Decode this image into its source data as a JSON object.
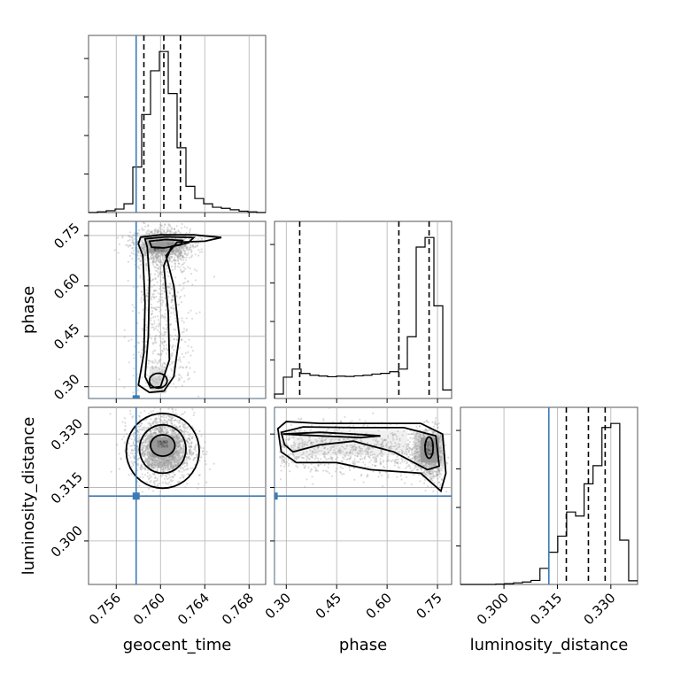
{
  "chart_data": {
    "type": "corner",
    "params": [
      "geocent_time",
      "phase",
      "luminosity_distance"
    ],
    "axis_labels": {
      "geocent_time": "geocent_time",
      "phase": "phase",
      "luminosity_distance": "luminosity_distance"
    },
    "ranges": {
      "geocent_time": [
        0.7535,
        0.7695
      ],
      "phase": [
        0.265,
        0.792
      ],
      "luminosity_distance": [
        0.2878,
        0.3375
      ]
    },
    "ticks": {
      "geocent_time": [
        0.756,
        0.76,
        0.764,
        0.768
      ],
      "phase": [
        0.3,
        0.45,
        0.6,
        0.75
      ],
      "luminosity_distance": [
        0.3,
        0.315,
        0.33
      ]
    },
    "tick_labels": {
      "geocent_time": [
        "0.756",
        "0.760",
        "0.764",
        "0.768"
      ],
      "phase": [
        "0.30",
        "0.45",
        "0.60",
        "0.75"
      ],
      "luminosity_distance": [
        "0.300",
        "0.315",
        "0.330"
      ]
    },
    "truths": {
      "geocent_time": 0.7578,
      "phase": 0.264,
      "luminosity_distance": 0.3126
    },
    "quantiles": {
      "geocent_time": [
        0.7585,
        0.7603,
        0.7618
      ],
      "phase": [
        0.34,
        0.635,
        0.725
      ],
      "luminosity_distance": [
        0.3175,
        0.3237,
        0.3284
      ]
    },
    "histograms": {
      "geocent_time": {
        "edges": [
          0.7535,
          0.7543,
          0.7551,
          0.7559,
          0.7567,
          0.7575,
          0.7583,
          0.7591,
          0.7599,
          0.7607,
          0.7615,
          0.7623,
          0.7631,
          0.7639,
          0.7647,
          0.7655,
          0.7663,
          0.7671,
          0.7679,
          0.7687,
          0.7695
        ],
        "counts": [
          0,
          2,
          5,
          10,
          25,
          130,
          280,
          405,
          460,
          340,
          185,
          75,
          40,
          25,
          15,
          12,
          8,
          4,
          2,
          0
        ]
      },
      "phase": {
        "edges": [
          0.265,
          0.2914,
          0.3177,
          0.3441,
          0.3704,
          0.3968,
          0.4231,
          0.4495,
          0.4758,
          0.5022,
          0.5285,
          0.5549,
          0.5812,
          0.6076,
          0.6339,
          0.6603,
          0.6866,
          0.713,
          0.7393,
          0.7657,
          0.792
        ],
        "counts": [
          30,
          145,
          200,
          170,
          158,
          153,
          148,
          152,
          150,
          154,
          158,
          166,
          171,
          182,
          200,
          420,
          1030,
          1095,
          630,
          58
        ]
      },
      "luminosity_distance": {
        "edges": [
          0.2878,
          0.2903,
          0.2928,
          0.2952,
          0.2977,
          0.3002,
          0.3027,
          0.3052,
          0.3076,
          0.3101,
          0.3126,
          0.3151,
          0.3176,
          0.3201,
          0.3225,
          0.325,
          0.3275,
          0.33,
          0.3325,
          0.335,
          0.3375
        ],
        "counts": [
          0,
          0,
          0,
          0,
          1,
          2,
          4,
          6,
          10,
          40,
          80,
          120,
          180,
          170,
          250,
          295,
          390,
          400,
          110,
          9
        ]
      }
    }
  }
}
